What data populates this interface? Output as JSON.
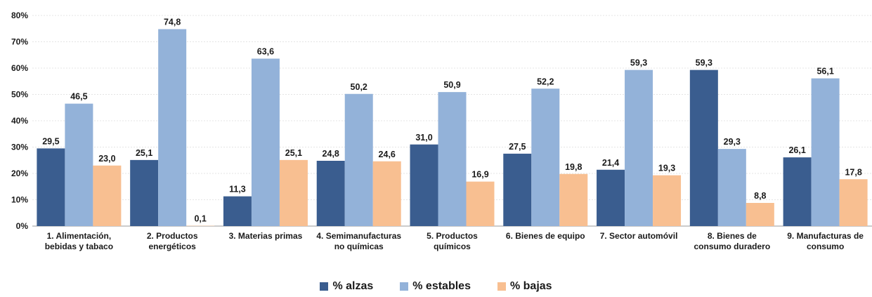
{
  "chart_data": {
    "type": "bar",
    "categories": [
      [
        "1. Alimentación,",
        "bebidas y tabaco"
      ],
      [
        "2. Productos",
        "energéticos"
      ],
      [
        "3. Materias primas"
      ],
      [
        "4. Semimanufacturas",
        "no químicas"
      ],
      [
        "5. Productos",
        "químicos"
      ],
      [
        "6. Bienes de equipo"
      ],
      [
        "7. Sector automóvil"
      ],
      [
        "8. Bienes de",
        "consumo duradero"
      ],
      [
        "9. Manufacturas de",
        "consumo"
      ]
    ],
    "series": [
      {
        "name": "% alzas",
        "color": "#3a5d8f",
        "values": [
          29.5,
          25.1,
          11.3,
          24.8,
          31.0,
          27.5,
          21.4,
          59.3,
          26.1
        ],
        "labels": [
          "29,5",
          "25,1",
          "11,3",
          "24,8",
          "31,0",
          "27,5",
          "21,4",
          "59,3",
          "26,1"
        ]
      },
      {
        "name": "% estables",
        "color": "#93b2d9",
        "values": [
          46.5,
          74.8,
          63.6,
          50.2,
          50.9,
          52.2,
          59.3,
          29.3,
          56.1
        ],
        "labels": [
          "46,5",
          "74,8",
          "63,6",
          "50,2",
          "50,9",
          "52,2",
          "59,3",
          "29,3",
          "56,1"
        ]
      },
      {
        "name": "% bajas",
        "color": "#f8bf91",
        "values": [
          23.0,
          0.1,
          25.1,
          24.6,
          16.9,
          19.8,
          19.3,
          8.8,
          17.8
        ],
        "labels": [
          "23,0",
          "0,1",
          "25,1",
          "24,6",
          "16,9",
          "19,8",
          "19,3",
          "8,8",
          "17,8"
        ]
      }
    ],
    "y_ticks": [
      "0%",
      "10%",
      "20%",
      "30%",
      "40%",
      "50%",
      "60%",
      "70%",
      "80%"
    ],
    "ylim": [
      0,
      80
    ],
    "grid": true,
    "legend_position": "bottom-center"
  }
}
